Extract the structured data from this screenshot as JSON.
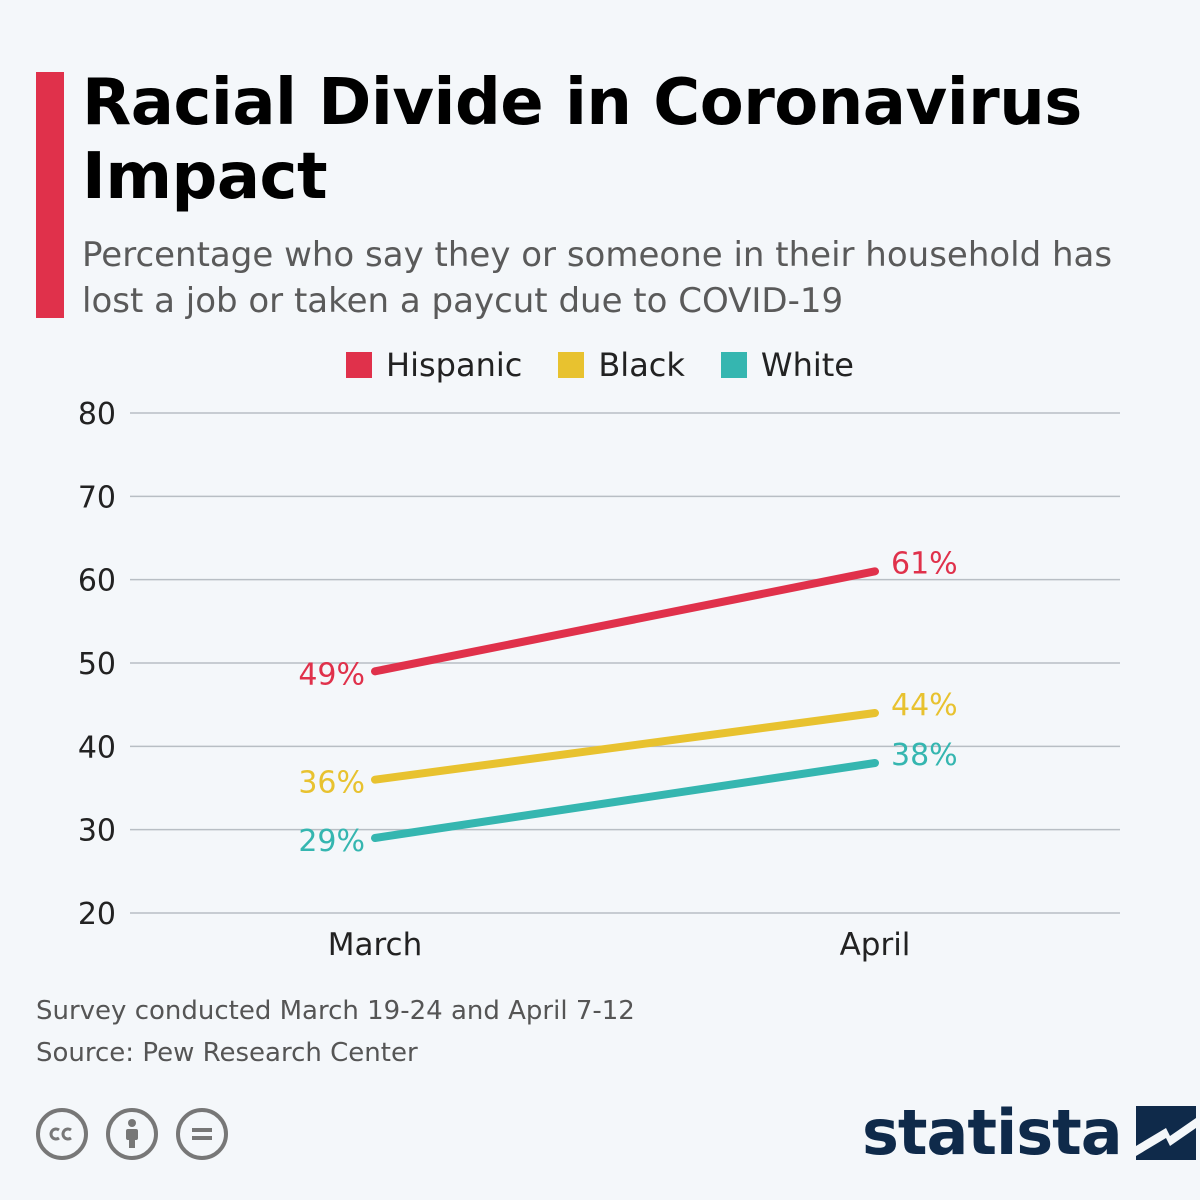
{
  "title": "Racial Divide in Coronavirus Impact",
  "subtitle": "Percentage who say they or someone in their household has lost a job or taken a paycut due to COVID-19",
  "colors": {
    "accent": "#e0314b",
    "hispanic": "#e0314b",
    "black": "#e8c22f",
    "white": "#35b6b0",
    "grid": "#b8bec4",
    "brand": "#0f2a4a"
  },
  "footer": {
    "note": "Survey conducted March 19-24 and April 7-12",
    "source": "Source: Pew Research Center"
  },
  "license_icons": [
    "cc-icon",
    "attribution-icon",
    "no-derivatives-icon"
  ],
  "brand": {
    "name": "statista"
  },
  "chart_data": {
    "type": "line",
    "title": "Racial Divide in Coronavirus Impact",
    "categories": [
      "March",
      "April"
    ],
    "ylim": [
      20,
      80
    ],
    "yticks": [
      20,
      30,
      40,
      50,
      60,
      70,
      80
    ],
    "grid": true,
    "legend_position": "top-center",
    "series": [
      {
        "name": "Hispanic",
        "values": [
          49,
          61
        ],
        "labels": [
          "49%",
          "61%"
        ],
        "color": "#e0314b"
      },
      {
        "name": "Black",
        "values": [
          36,
          44
        ],
        "labels": [
          "36%",
          "44%"
        ],
        "color": "#e8c22f"
      },
      {
        "name": "White",
        "values": [
          29,
          38
        ],
        "labels": [
          "29%",
          "38%"
        ],
        "color": "#35b6b0"
      }
    ]
  }
}
